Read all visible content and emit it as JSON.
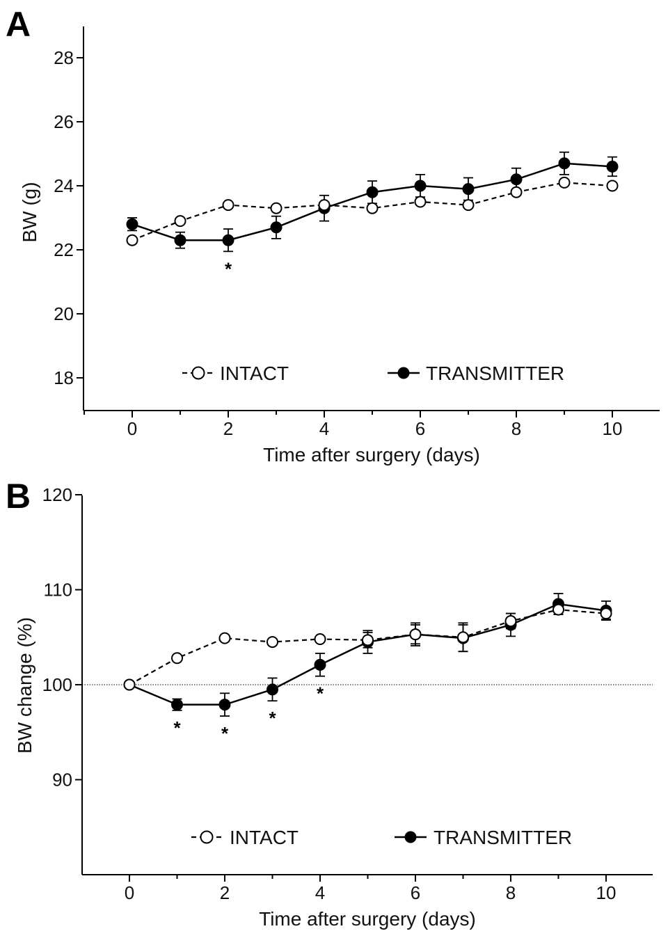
{
  "chart_data": [
    {
      "panel": "A",
      "type": "line",
      "x": [
        0,
        1,
        2,
        3,
        4,
        5,
        6,
        7,
        8,
        9,
        10
      ],
      "xlabel": "Time after surgery (days)",
      "ylabel": "BW (g)",
      "xlim": [
        -1,
        11
      ],
      "ylim": [
        17,
        29
      ],
      "xticks": [
        0,
        2,
        4,
        6,
        8,
        10
      ],
      "yticks": [
        18,
        20,
        22,
        24,
        26,
        28
      ],
      "series": [
        {
          "name": "INTACT",
          "marker": "open-circle",
          "line": "dashed",
          "values": [
            22.3,
            22.9,
            23.4,
            23.3,
            23.4,
            23.3,
            23.5,
            23.4,
            23.8,
            24.1,
            24.0
          ],
          "errors": [
            0,
            0,
            0,
            0,
            0,
            0,
            0,
            0,
            0,
            0,
            0
          ]
        },
        {
          "name": "TRANSMITTER",
          "marker": "filled-circle",
          "line": "solid",
          "values": [
            22.8,
            22.3,
            22.3,
            22.7,
            23.3,
            23.8,
            24.0,
            23.9,
            24.2,
            24.7,
            24.6
          ],
          "errors": [
            0.2,
            0.25,
            0.35,
            0.35,
            0.4,
            0.35,
            0.35,
            0.35,
            0.35,
            0.35,
            0.3
          ]
        }
      ],
      "significance": [
        {
          "x": 2,
          "label": "*"
        }
      ]
    },
    {
      "panel": "B",
      "type": "line",
      "x": [
        0,
        1,
        2,
        3,
        4,
        5,
        6,
        7,
        8,
        9,
        10
      ],
      "xlabel": "Time after surgery (days)",
      "ylabel": "BW change (%)",
      "xlim": [
        -1,
        11
      ],
      "ylim": [
        80,
        120
      ],
      "xticks": [
        0,
        2,
        4,
        6,
        8,
        10
      ],
      "yticks": [
        90,
        100,
        110,
        120
      ],
      "reference_line": 100,
      "series": [
        {
          "name": "INTACT",
          "marker": "open-circle",
          "line": "dashed",
          "values": [
            100,
            102.8,
            104.9,
            104.5,
            104.8,
            104.7,
            105.3,
            105.0,
            106.7,
            107.9,
            107.5
          ],
          "errors": [
            0,
            0,
            0,
            0,
            0,
            0.8,
            1.2,
            1.5,
            0.8,
            0.5,
            0.6
          ]
        },
        {
          "name": "TRANSMITTER",
          "marker": "filled-circle",
          "line": "solid",
          "values": [
            100,
            97.9,
            97.9,
            99.5,
            102.1,
            104.5,
            105.3,
            104.9,
            106.3,
            108.5,
            107.8
          ],
          "errors": [
            0,
            0.6,
            1.2,
            1.2,
            1.2,
            1.2,
            1.0,
            1.4,
            1.2,
            1.1,
            1.0
          ]
        }
      ],
      "significance": [
        {
          "x": 1,
          "label": "*"
        },
        {
          "x": 2,
          "label": "*"
        },
        {
          "x": 3,
          "label": "*"
        },
        {
          "x": 4,
          "label": "*"
        }
      ]
    }
  ]
}
